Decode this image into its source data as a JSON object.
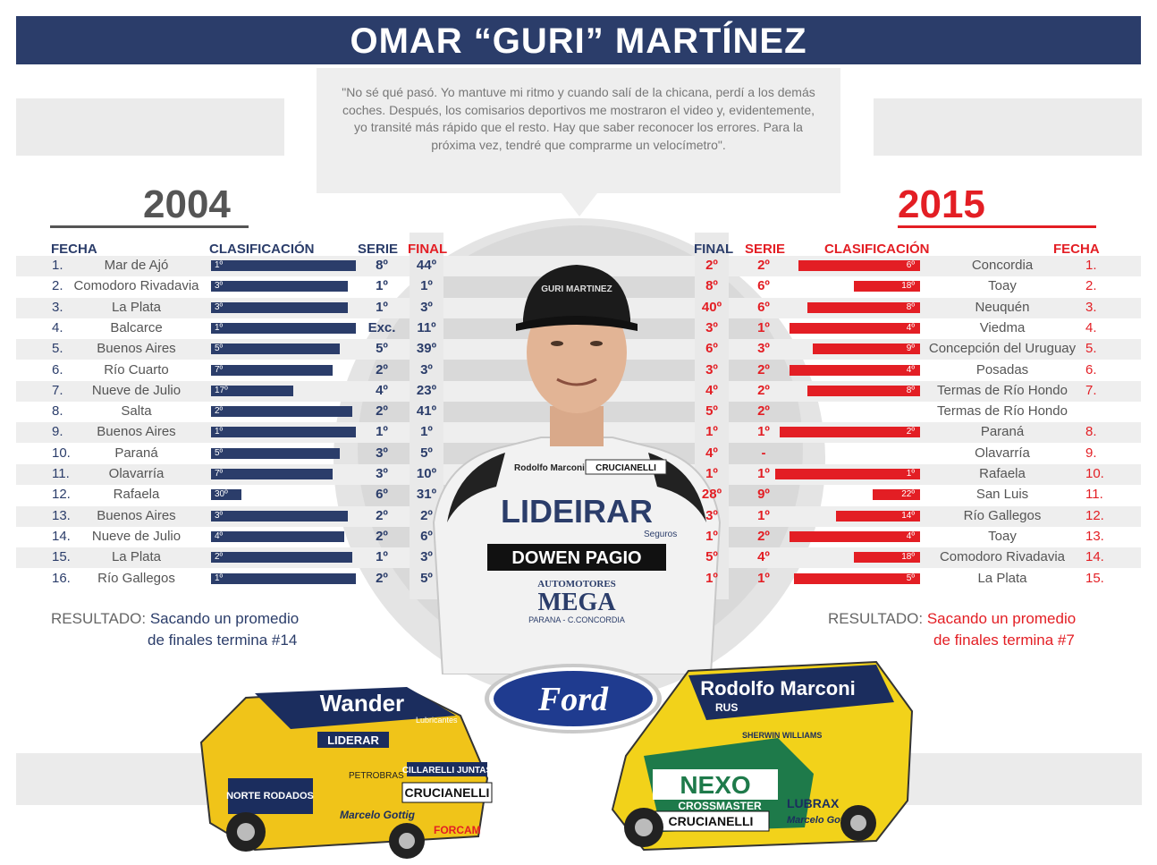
{
  "title": "OMAR “GURI” MARTÍNEZ",
  "quote": "\"No sé qué pasó. Yo mantuve mi ritmo y cuando salí de la chicana, perdí a los demás coches. Después, los comisarios deportivos me mostraron el video y, evidentemente, yo transité más rápido que el resto. Hay que saber reconocer los errores. Para la próxima vez, tendré que comprarme un velocímetro\".",
  "colors": {
    "navy": "#2b3d6a",
    "red": "#e31e24"
  },
  "left": {
    "year": "2004",
    "headers": {
      "fecha": "FECHA",
      "clasificacion": "CLASIFICACIÓN",
      "serie": "SERIE",
      "final": "FINAL"
    },
    "rows": [
      {
        "num": "1.",
        "place": "Mar de Ajó",
        "clas": "1º",
        "clas_value": 1,
        "serie": "8º",
        "final": "44º"
      },
      {
        "num": "2.",
        "place": "Comodoro Rivadavia",
        "clas": "3º",
        "clas_value": 3,
        "serie": "1º",
        "final": "1º"
      },
      {
        "num": "3.",
        "place": "La Plata",
        "clas": "3º",
        "clas_value": 3,
        "serie": "1º",
        "final": "3º"
      },
      {
        "num": "4.",
        "place": "Balcarce",
        "clas": "1º",
        "clas_value": 1,
        "serie": "Exc.",
        "final": "11º"
      },
      {
        "num": "5.",
        "place": "Buenos Aires",
        "clas": "5º",
        "clas_value": 5,
        "serie": "5º",
        "final": "39º"
      },
      {
        "num": "6.",
        "place": "Río Cuarto",
        "clas": "7º",
        "clas_value": 7,
        "serie": "2º",
        "final": "3º"
      },
      {
        "num": "7.",
        "place": "Nueve de Julio",
        "clas": "17º",
        "clas_value": 17,
        "serie": "4º",
        "final": "23º"
      },
      {
        "num": "8.",
        "place": "Salta",
        "clas": "2º",
        "clas_value": 2,
        "serie": "2º",
        "final": "41º"
      },
      {
        "num": "9.",
        "place": "Buenos Aires",
        "clas": "1º",
        "clas_value": 1,
        "serie": "1º",
        "final": "1º"
      },
      {
        "num": "10.",
        "place": "Paraná",
        "clas": "5º",
        "clas_value": 5,
        "serie": "3º",
        "final": "5º"
      },
      {
        "num": "11.",
        "place": "Olavarría",
        "clas": "7º",
        "clas_value": 7,
        "serie": "3º",
        "final": "10º"
      },
      {
        "num": "12.",
        "place": "Rafaela",
        "clas": "30º",
        "clas_value": 30,
        "serie": "6º",
        "final": "31º"
      },
      {
        "num": "13.",
        "place": "Buenos Aires",
        "clas": "3º",
        "clas_value": 3,
        "serie": "2º",
        "final": "2º"
      },
      {
        "num": "14.",
        "place": "Nueve de Julio",
        "clas": "4º",
        "clas_value": 4,
        "serie": "2º",
        "final": "6º"
      },
      {
        "num": "15.",
        "place": "La Plata",
        "clas": "2º",
        "clas_value": 2,
        "serie": "1º",
        "final": "3º"
      },
      {
        "num": "16.",
        "place": "Río Gallegos",
        "clas": "1º",
        "clas_value": 1,
        "serie": "2º",
        "final": "5º"
      }
    ],
    "result_label": "RESULTADO:",
    "result_line1": "Sacando un promedio",
    "result_line2": "de finales termina #14"
  },
  "right": {
    "year": "2015",
    "headers": {
      "final": "FINAL",
      "serie": "SERIE",
      "clasificacion": "CLASIFICACIÓN",
      "fecha": "FECHA"
    },
    "rows": [
      {
        "final": "2º",
        "serie": "2º",
        "clas": "6º",
        "clas_value": 6,
        "place": "Concordia",
        "num": "1."
      },
      {
        "final": "8º",
        "serie": "6º",
        "clas": "18º",
        "clas_value": 18,
        "place": "Toay",
        "num": "2."
      },
      {
        "final": "40º",
        "serie": "6º",
        "clas": "8º",
        "clas_value": 8,
        "place": "Neuquén",
        "num": "3."
      },
      {
        "final": "3º",
        "serie": "1º",
        "clas": "4º",
        "clas_value": 4,
        "place": "Viedma",
        "num": "4."
      },
      {
        "final": "6º",
        "serie": "3º",
        "clas": "9º",
        "clas_value": 9,
        "place": "Concepción del Uruguay",
        "num": "5."
      },
      {
        "final": "3º",
        "serie": "2º",
        "clas": "4º",
        "clas_value": 4,
        "place": "Posadas",
        "num": "6."
      },
      {
        "final": "4º",
        "serie": "2º",
        "clas": "8º",
        "clas_value": 8,
        "place": "Termas de Río Hondo",
        "num": "7."
      },
      {
        "final": "5º",
        "serie": "2º",
        "clas": "",
        "clas_value": null,
        "place": "Termas de Río Hondo",
        "num": ""
      },
      {
        "final": "1º",
        "serie": "1º",
        "clas": "2º",
        "clas_value": 2,
        "place": "Paraná",
        "num": "8."
      },
      {
        "final": "4º",
        "serie": "-",
        "clas": "",
        "clas_value": null,
        "place": "Olavarría",
        "num": "9."
      },
      {
        "final": "1º",
        "serie": "1º",
        "clas": "1º",
        "clas_value": 1,
        "place": "Rafaela",
        "num": "10."
      },
      {
        "final": "28º",
        "serie": "9º",
        "clas": "22º",
        "clas_value": 22,
        "place": "San Luis",
        "num": "11."
      },
      {
        "final": "3º",
        "serie": "1º",
        "clas": "14º",
        "clas_value": 14,
        "place": "Río Gallegos",
        "num": "12."
      },
      {
        "final": "1º",
        "serie": "2º",
        "clas": "4º",
        "clas_value": 4,
        "place": "Toay",
        "num": "13."
      },
      {
        "final": "5º",
        "serie": "4º",
        "clas": "18º",
        "clas_value": 18,
        "place": "Comodoro Rivadavia",
        "num": "14."
      },
      {
        "final": "1º",
        "serie": "1º",
        "clas": "5º",
        "clas_value": 5,
        "place": "La Plata",
        "num": "15."
      }
    ],
    "result_label": "RESULTADO:",
    "result_line1": "Sacando un promedio",
    "result_line2": "de finales termina #7"
  },
  "photo": {
    "cap_text": "GURI MARTINEZ",
    "suit_brand1": "Rodolfo Marconi",
    "suit_brand2": "CRUCIANELLI",
    "suit_main": "LIDEIRAR",
    "suit_sub": "Seguros",
    "suit_banner": "DOWEN PAGIO",
    "suit_sponsor_top": "AUTOMOTORES",
    "suit_sponsor": "MEGA",
    "suit_sponsor_bottom": "PARANA - C.CONCORDIA"
  },
  "logo": {
    "text": "Ford",
    "icon": "ford-oval-logo"
  },
  "car_left": {
    "brand_top": "Wander",
    "brand_top_sub": "Lubricantes",
    "sponsor1": "LIDERAR",
    "sponsor2": "CRUCIANELLI",
    "sponsor3": "CILLARELLI JUNTAS",
    "sponsor4": "NORTE RODADOS",
    "sponsor5": "Marcelo Gottig",
    "sponsor6": "FORCAM",
    "sponsor7": "PETROBRAS"
  },
  "car_right": {
    "brand_top": "Rodolfo Marconi",
    "brand_top_sub": "RUS",
    "sponsor1": "NEXO",
    "sponsor2": "CROSSMASTER",
    "sponsor3": "CRUCIANELLI",
    "sponsor4": "LUBRAX",
    "sponsor5": "Marcelo Gottig",
    "sponsor6": "SHERWIN WILLIAMS"
  }
}
